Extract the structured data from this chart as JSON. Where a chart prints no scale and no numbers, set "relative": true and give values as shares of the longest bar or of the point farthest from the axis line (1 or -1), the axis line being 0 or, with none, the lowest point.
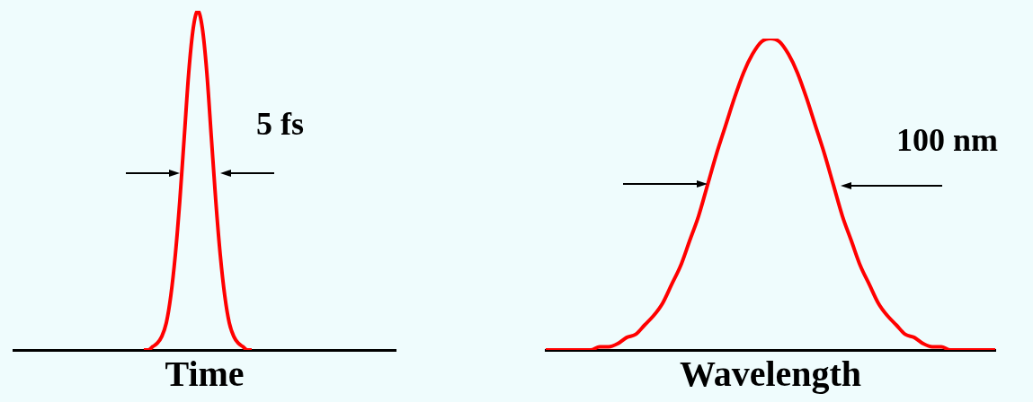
{
  "chart_data": [
    {
      "type": "line",
      "xlabel": "Time",
      "relative": true,
      "grid": false,
      "tick_labels": false,
      "marker": "none",
      "annotations": [
        "5 fs"
      ],
      "categories": [
        null,
        null,
        null,
        null,
        null,
        null,
        null,
        null,
        null,
        null,
        null,
        null,
        null,
        null,
        null,
        null,
        null,
        null,
        null,
        null,
        null,
        null,
        null,
        null,
        null,
        null,
        null,
        null,
        null,
        null,
        null,
        null,
        null,
        null,
        null,
        null,
        null,
        null,
        null,
        null,
        null,
        null,
        null,
        null,
        null,
        null,
        null,
        null,
        null,
        null,
        null,
        null,
        null,
        null,
        null,
        null,
        null,
        null,
        null,
        null,
        null,
        null,
        null,
        null,
        null,
        null,
        null,
        null,
        null,
        null,
        null,
        null,
        null,
        null,
        null,
        null,
        null,
        null,
        null,
        null,
        null,
        null,
        null,
        null,
        null,
        null
      ],
      "series": [
        {
          "color": "#ff0000",
          "values": [
            null,
            null,
            null,
            null,
            null,
            null,
            null,
            null,
            null,
            null,
            null,
            null,
            null,
            null,
            null,
            null,
            null,
            null,
            null,
            null,
            null,
            null,
            null,
            null,
            null,
            null,
            null,
            null,
            null,
            0,
            0,
            0.01,
            0.02,
            0.04,
            0.08,
            0.16,
            0.28,
            0.44,
            0.63,
            0.82,
            0.95,
            1,
            0.95,
            0.82,
            0.63,
            0.44,
            0.28,
            0.16,
            0.08,
            0.04,
            0.02,
            0.01,
            0,
            0,
            null,
            null,
            null,
            null,
            null,
            null,
            null,
            null,
            null,
            null,
            null,
            null,
            null,
            null,
            null,
            null,
            null,
            null,
            null,
            null,
            null,
            null,
            null,
            null,
            null,
            null,
            null,
            null,
            null,
            null,
            null,
            null
          ]
        }
      ]
    },
    {
      "type": "line",
      "xlabel": "Wavelength",
      "relative": true,
      "grid": false,
      "tick_labels": false,
      "marker": "none",
      "annotations": [
        "100 nm"
      ],
      "categories": [
        null,
        null,
        null,
        null,
        null,
        null,
        null,
        null,
        null,
        null,
        null,
        null,
        null,
        null,
        null,
        null,
        null,
        null,
        null,
        null,
        null,
        null,
        null,
        null,
        null,
        null,
        null,
        null,
        null,
        null,
        null,
        null,
        null,
        null,
        null,
        null,
        null,
        null,
        null,
        null,
        null,
        null,
        null,
        null,
        null,
        null,
        null,
        null,
        null,
        null,
        null
      ],
      "series": [
        {
          "color": "#ff0000",
          "values": [
            0,
            0,
            0,
            0,
            0,
            0,
            0.01,
            0.01,
            0.02,
            0.04,
            0.05,
            0.08,
            0.11,
            0.15,
            0.21,
            0.27,
            0.35,
            0.43,
            0.53,
            0.63,
            0.72,
            0.81,
            0.89,
            0.95,
            0.99,
            1,
            0.99,
            0.95,
            0.89,
            0.81,
            0.72,
            0.63,
            0.53,
            0.43,
            0.35,
            0.27,
            0.21,
            0.15,
            0.11,
            0.08,
            0.05,
            0.04,
            0.02,
            0.01,
            0.01,
            0,
            0,
            0,
            0,
            0,
            0
          ]
        }
      ]
    }
  ]
}
